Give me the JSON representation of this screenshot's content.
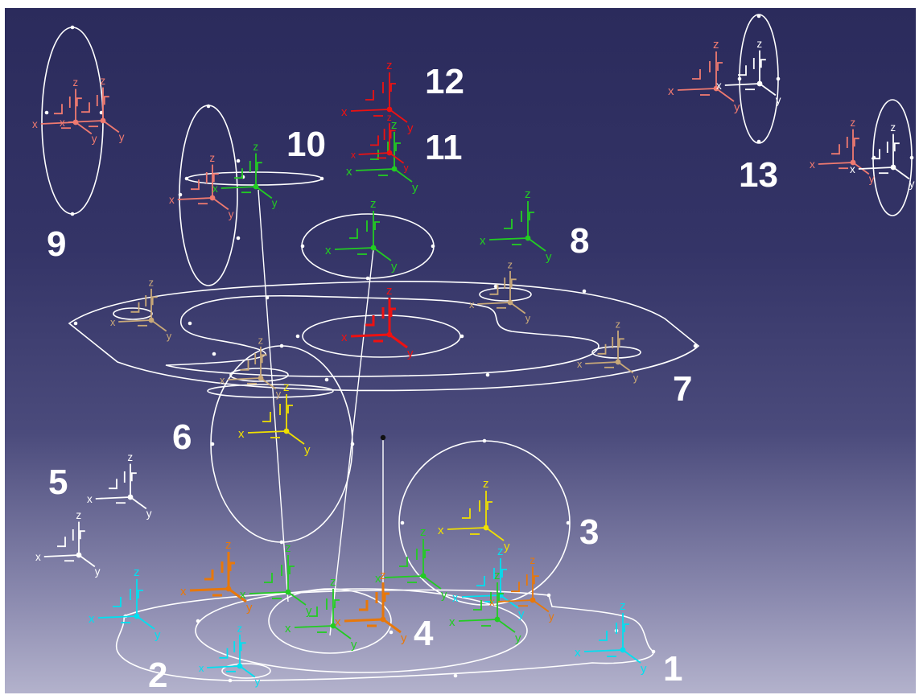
{
  "labels": {
    "n1": "1",
    "n2": "2",
    "n3": "3",
    "n4": "4",
    "n5": "5",
    "n6": "6",
    "n7": "7",
    "n8": "8",
    "n9": "9",
    "n10": "10",
    "n11": "11",
    "n12": "12",
    "n13": "13"
  },
  "axis_letters": {
    "x": "x",
    "y": "y",
    "z": "z"
  },
  "colors": {
    "background_top": "#2b2b5c",
    "background_bottom": "#b3b2cc",
    "geometry": "#ffffff",
    "green_axes": "#22cc22",
    "red_axes": "#ee1111",
    "salmon_axes": "#f07a70",
    "yellow_axes": "#f0e000",
    "tan_axes": "#c8a878",
    "cyan_axes": "#00e0f0",
    "orange_axes": "#e8780a",
    "white_axes": "#ffffff"
  }
}
